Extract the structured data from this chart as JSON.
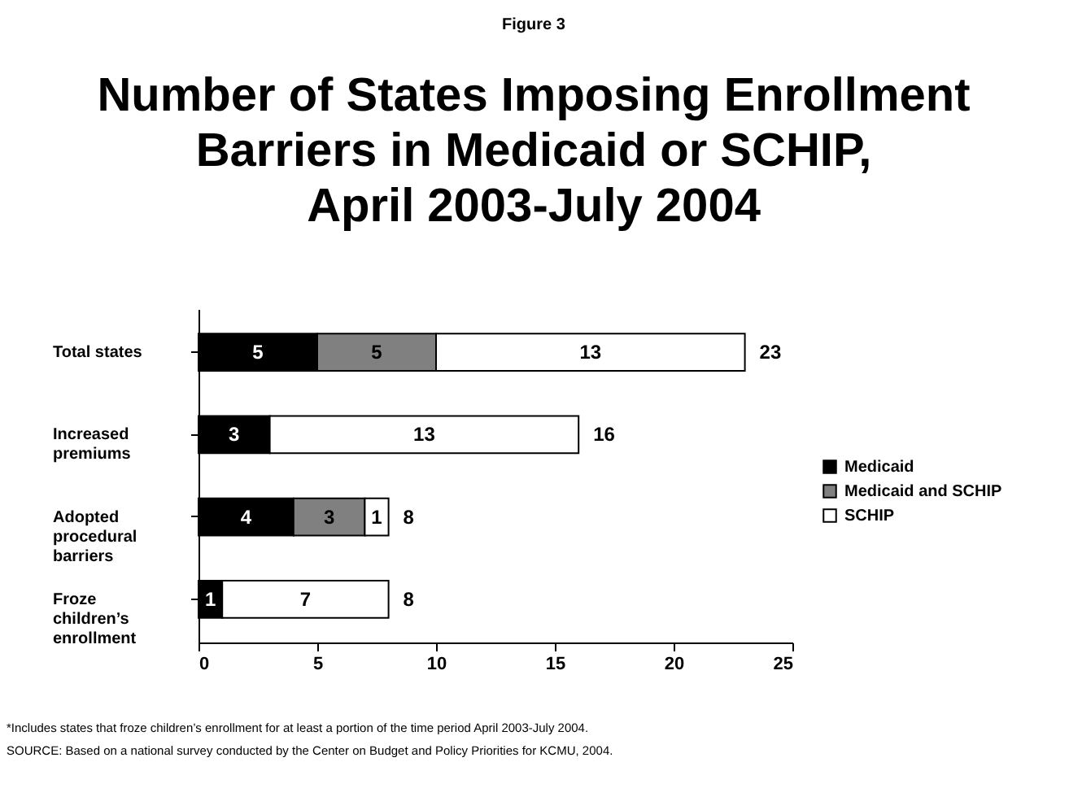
{
  "chart_data": {
    "type": "bar",
    "orientation": "horizontal",
    "stacked": true,
    "title": "Number of States Imposing Enrollment\nBarriers in Medicaid or SCHIP,\nApril 2003-July 2004",
    "categories": [
      "Total states",
      "Increased\npremiums",
      "Adopted\nprocedural\nbarriers",
      "Froze\nchildren’s\nenrollment"
    ],
    "series": [
      {
        "name": "Medicaid",
        "color": "#000000",
        "values": [
          5,
          3,
          4,
          1
        ]
      },
      {
        "name": "Medicaid and SCHIP",
        "color": "#808080",
        "values": [
          5,
          null,
          3,
          null
        ]
      },
      {
        "name": "SCHIP",
        "color": "#ffffff",
        "values": [
          13,
          13,
          1,
          7
        ]
      }
    ],
    "totals": [
      "23",
      "16",
      "8",
      "8"
    ],
    "data_labels": true,
    "xlim": [
      0,
      25
    ],
    "xticks": [
      0,
      5,
      10,
      15,
      20,
      25
    ],
    "grid": false,
    "legend": "right",
    "annotations": [
      "Figure 3",
      "*Includes states that froze children’s enrollment for at least a portion of the time period April 2003-July 2004.",
      "SOURCE:  Based on a national survey conducted by the Center on Budget and Policy Priorities for KCMU, 2004."
    ]
  }
}
